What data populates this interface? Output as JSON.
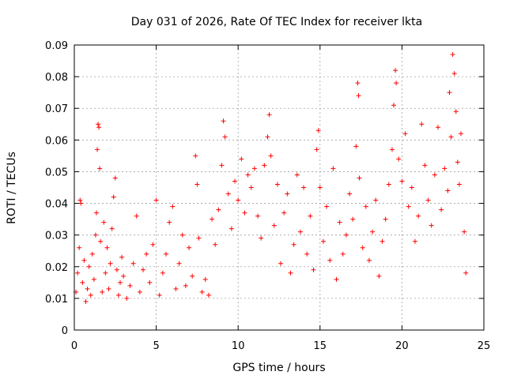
{
  "chart_data": {
    "type": "scatter",
    "title": "Day 031 of 2026, Rate Of TEC Index for receiver lkta",
    "xlabel": "GPS time / hours",
    "ylabel": "ROTI / TECUs",
    "xlim": [
      0,
      25
    ],
    "ylim": [
      0,
      0.09
    ],
    "xticks": [
      0,
      5,
      10,
      15,
      20,
      25
    ],
    "xtick_labels": [
      "0",
      "5",
      "10",
      "15",
      "20",
      "25"
    ],
    "yticks": [
      0,
      0.01,
      0.02,
      0.03,
      0.04,
      0.05,
      0.06,
      0.07,
      0.08,
      0.09
    ],
    "ytick_labels": [
      "0",
      "0.01",
      "0.02",
      "0.03",
      "0.04",
      "0.05",
      "0.06",
      "0.07",
      "0.08",
      "0.09"
    ],
    "grid": true,
    "marker": "+",
    "color": "#ff0000",
    "series": [
      {
        "name": "ROTI",
        "points": [
          [
            0.1,
            0.012
          ],
          [
            0.2,
            0.018
          ],
          [
            0.3,
            0.026
          ],
          [
            0.35,
            0.041
          ],
          [
            0.4,
            0.04
          ],
          [
            0.5,
            0.015
          ],
          [
            0.6,
            0.022
          ],
          [
            0.7,
            0.009
          ],
          [
            0.8,
            0.013
          ],
          [
            0.9,
            0.02
          ],
          [
            1.0,
            0.011
          ],
          [
            1.1,
            0.024
          ],
          [
            1.2,
            0.016
          ],
          [
            1.3,
            0.03
          ],
          [
            1.35,
            0.037
          ],
          [
            1.4,
            0.057
          ],
          [
            1.45,
            0.065
          ],
          [
            1.5,
            0.064
          ],
          [
            1.55,
            0.051
          ],
          [
            1.6,
            0.028
          ],
          [
            1.7,
            0.012
          ],
          [
            1.8,
            0.034
          ],
          [
            1.9,
            0.018
          ],
          [
            2.0,
            0.026
          ],
          [
            2.1,
            0.013
          ],
          [
            2.2,
            0.021
          ],
          [
            2.3,
            0.032
          ],
          [
            2.4,
            0.042
          ],
          [
            2.5,
            0.048
          ],
          [
            2.6,
            0.019
          ],
          [
            2.7,
            0.011
          ],
          [
            2.8,
            0.015
          ],
          [
            2.9,
            0.023
          ],
          [
            3.0,
            0.017
          ],
          [
            3.2,
            0.01
          ],
          [
            3.4,
            0.014
          ],
          [
            3.6,
            0.021
          ],
          [
            3.8,
            0.036
          ],
          [
            4.0,
            0.012
          ],
          [
            4.2,
            0.019
          ],
          [
            4.4,
            0.024
          ],
          [
            4.6,
            0.015
          ],
          [
            4.8,
            0.027
          ],
          [
            5.0,
            0.041
          ],
          [
            5.2,
            0.011
          ],
          [
            5.4,
            0.018
          ],
          [
            5.6,
            0.024
          ],
          [
            5.8,
            0.034
          ],
          [
            6.0,
            0.039
          ],
          [
            6.2,
            0.013
          ],
          [
            6.4,
            0.021
          ],
          [
            6.6,
            0.03
          ],
          [
            6.8,
            0.014
          ],
          [
            7.0,
            0.026
          ],
          [
            7.2,
            0.017
          ],
          [
            7.4,
            0.055
          ],
          [
            7.5,
            0.046
          ],
          [
            7.6,
            0.029
          ],
          [
            7.8,
            0.012
          ],
          [
            8.0,
            0.016
          ],
          [
            8.2,
            0.011
          ],
          [
            8.4,
            0.035
          ],
          [
            8.6,
            0.027
          ],
          [
            8.8,
            0.038
          ],
          [
            9.0,
            0.052
          ],
          [
            9.1,
            0.066
          ],
          [
            9.2,
            0.061
          ],
          [
            9.4,
            0.043
          ],
          [
            9.6,
            0.032
          ],
          [
            9.8,
            0.047
          ],
          [
            10.0,
            0.041
          ],
          [
            10.2,
            0.054
          ],
          [
            10.4,
            0.037
          ],
          [
            10.6,
            0.049
          ],
          [
            10.8,
            0.045
          ],
          [
            11.0,
            0.051
          ],
          [
            11.2,
            0.036
          ],
          [
            11.4,
            0.029
          ],
          [
            11.6,
            0.052
          ],
          [
            11.8,
            0.061
          ],
          [
            11.9,
            0.068
          ],
          [
            12.0,
            0.055
          ],
          [
            12.2,
            0.033
          ],
          [
            12.4,
            0.046
          ],
          [
            12.6,
            0.021
          ],
          [
            12.8,
            0.037
          ],
          [
            13.0,
            0.043
          ],
          [
            13.2,
            0.018
          ],
          [
            13.4,
            0.027
          ],
          [
            13.6,
            0.049
          ],
          [
            13.8,
            0.031
          ],
          [
            14.0,
            0.045
          ],
          [
            14.2,
            0.024
          ],
          [
            14.4,
            0.036
          ],
          [
            14.6,
            0.019
          ],
          [
            14.8,
            0.057
          ],
          [
            14.9,
            0.063
          ],
          [
            15.0,
            0.045
          ],
          [
            15.2,
            0.028
          ],
          [
            15.4,
            0.039
          ],
          [
            15.6,
            0.022
          ],
          [
            15.8,
            0.051
          ],
          [
            16.0,
            0.016
          ],
          [
            16.2,
            0.034
          ],
          [
            16.4,
            0.024
          ],
          [
            16.6,
            0.03
          ],
          [
            16.8,
            0.043
          ],
          [
            17.0,
            0.035
          ],
          [
            17.2,
            0.058
          ],
          [
            17.3,
            0.078
          ],
          [
            17.35,
            0.074
          ],
          [
            17.4,
            0.048
          ],
          [
            17.6,
            0.026
          ],
          [
            17.8,
            0.039
          ],
          [
            18.0,
            0.022
          ],
          [
            18.2,
            0.031
          ],
          [
            18.4,
            0.041
          ],
          [
            18.6,
            0.017
          ],
          [
            18.8,
            0.028
          ],
          [
            19.0,
            0.035
          ],
          [
            19.2,
            0.046
          ],
          [
            19.4,
            0.057
          ],
          [
            19.5,
            0.071
          ],
          [
            19.6,
            0.082
          ],
          [
            19.65,
            0.078
          ],
          [
            19.8,
            0.054
          ],
          [
            20.0,
            0.047
          ],
          [
            20.2,
            0.062
          ],
          [
            20.4,
            0.039
          ],
          [
            20.6,
            0.045
          ],
          [
            20.8,
            0.028
          ],
          [
            21.0,
            0.036
          ],
          [
            21.2,
            0.065
          ],
          [
            21.4,
            0.052
          ],
          [
            21.6,
            0.041
          ],
          [
            21.8,
            0.033
          ],
          [
            22.0,
            0.049
          ],
          [
            22.2,
            0.064
          ],
          [
            22.4,
            0.038
          ],
          [
            22.6,
            0.051
          ],
          [
            22.8,
            0.044
          ],
          [
            22.9,
            0.075
          ],
          [
            23.0,
            0.061
          ],
          [
            23.1,
            0.087
          ],
          [
            23.2,
            0.081
          ],
          [
            23.3,
            0.069
          ],
          [
            23.4,
            0.053
          ],
          [
            23.5,
            0.046
          ],
          [
            23.6,
            0.062
          ],
          [
            23.8,
            0.031
          ],
          [
            23.9,
            0.018
          ]
        ]
      }
    ]
  }
}
